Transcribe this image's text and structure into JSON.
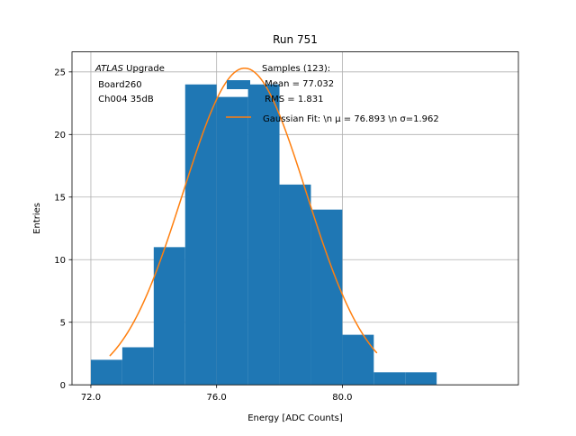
{
  "chart_data": {
    "type": "histogram",
    "title": "Run 751",
    "xlabel": "Energy [ADC Counts]",
    "ylabel": "Entries",
    "xlim": [
      71.4,
      85.6
    ],
    "ylim": [
      0,
      26.6
    ],
    "grid": true,
    "xticks": [
      72.0,
      76.0,
      80.0
    ],
    "xtick_labels": [
      "72.0",
      "76.0",
      "80.0"
    ],
    "yticks": [
      0,
      5,
      10,
      15,
      20,
      25
    ],
    "ytick_labels": [
      "0",
      "5",
      "10",
      "15",
      "20",
      "25"
    ],
    "bins": [
      {
        "x0": 72.0,
        "x1": 73.0,
        "count": 2
      },
      {
        "x0": 73.0,
        "x1": 74.0,
        "count": 3
      },
      {
        "x0": 74.0,
        "x1": 75.0,
        "count": 11
      },
      {
        "x0": 75.0,
        "x1": 76.0,
        "count": 24
      },
      {
        "x0": 76.0,
        "x1": 77.0,
        "count": 23
      },
      {
        "x0": 77.0,
        "x1": 78.0,
        "count": 24
      },
      {
        "x0": 78.0,
        "x1": 79.0,
        "count": 16
      },
      {
        "x0": 79.0,
        "x1": 80.0,
        "count": 14
      },
      {
        "x0": 80.0,
        "x1": 81.0,
        "count": 4
      },
      {
        "x0": 81.0,
        "x1": 82.0,
        "count": 1
      },
      {
        "x0": 82.0,
        "x1": 83.0,
        "count": 1
      }
    ],
    "fit": {
      "type": "gaussian",
      "amplitude": 25.3,
      "mu": 76.893,
      "sigma": 1.962,
      "x_range": [
        72.6,
        81.1
      ]
    },
    "colors": {
      "histogram": "#1f77b4",
      "fit": "#ff7f0e",
      "grid": "#b0b0b0"
    },
    "annotation": {
      "line1_italic": "ATLAS",
      "line1_rest": " Upgrade",
      "line2": " Board260",
      "line3": " Ch004 35dB"
    },
    "legend": {
      "placement": "top-right",
      "entries": [
        {
          "lines": [
            "Samples (123):",
            " Mean = 77.032",
            " RMS = 1.831"
          ]
        },
        {
          "lines": [
            "Gaussian Fit: \\n μ = 76.893 \\n σ=1.962"
          ]
        }
      ]
    }
  }
}
